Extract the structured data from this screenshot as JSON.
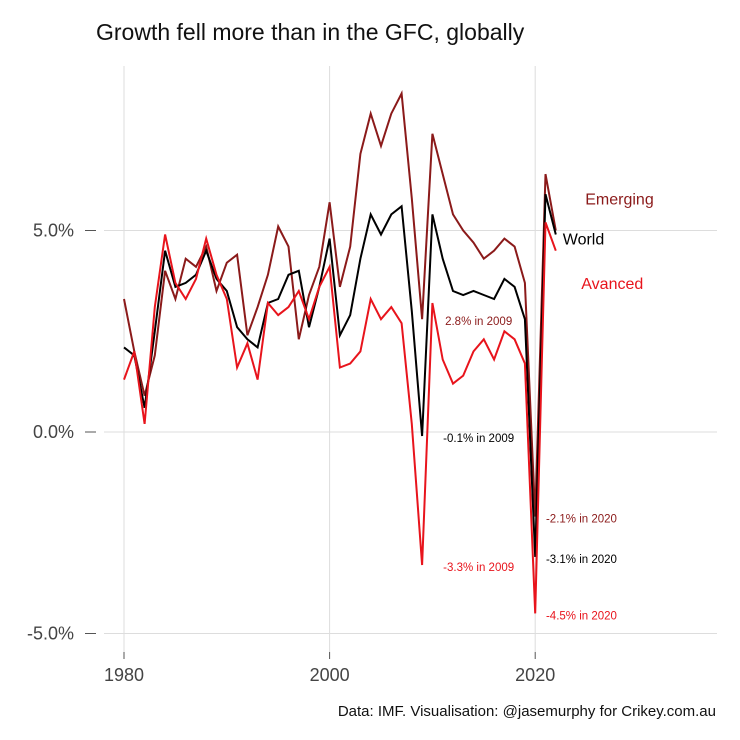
{
  "chart_data": {
    "type": "line",
    "title": "Growth fell more than in the GFC, globally",
    "caption": "Data: IMF. Visualisation: @jasemurphy for Crikey.com.au",
    "xlabel": "",
    "ylabel": "",
    "xlim": [
      1977,
      2036
    ],
    "ylim": [
      -5.5,
      9.1
    ],
    "x_ticks": [
      1980,
      2000,
      2020
    ],
    "x_tick_labels": [
      "1980",
      "2000",
      "2020"
    ],
    "y_ticks": [
      -5,
      0,
      5
    ],
    "y_tick_labels": [
      "-5.0%",
      "0.0%",
      "5.0%"
    ],
    "grid": true,
    "legend": "direct-labels-right",
    "x": [
      1980,
      1981,
      1982,
      1983,
      1984,
      1985,
      1986,
      1987,
      1988,
      1989,
      1990,
      1991,
      1992,
      1993,
      1994,
      1995,
      1996,
      1997,
      1998,
      1999,
      2000,
      2001,
      2002,
      2003,
      2004,
      2005,
      2006,
      2007,
      2008,
      2009,
      2010,
      2011,
      2012,
      2013,
      2014,
      2015,
      2016,
      2017,
      2018,
      2019,
      2020,
      2021,
      2022
    ],
    "series": [
      {
        "name": "Emerging",
        "color": "#8b1a1a",
        "values": [
          3.3,
          2.0,
          0.9,
          1.9,
          4.0,
          3.3,
          4.3,
          4.1,
          4.6,
          3.5,
          4.2,
          4.4,
          2.4,
          3.1,
          3.9,
          5.1,
          4.6,
          2.3,
          3.4,
          4.1,
          5.7,
          3.6,
          4.6,
          6.9,
          7.9,
          7.1,
          7.9,
          8.4,
          5.8,
          2.8,
          7.4,
          6.4,
          5.4,
          5.0,
          4.7,
          4.3,
          4.5,
          4.8,
          4.6,
          3.7,
          -2.1,
          6.4,
          5.0
        ]
      },
      {
        "name": "World",
        "color": "#000000",
        "values": [
          2.1,
          1.9,
          0.6,
          2.5,
          4.5,
          3.6,
          3.7,
          3.9,
          4.5,
          3.8,
          3.5,
          2.6,
          2.3,
          2.1,
          3.2,
          3.3,
          3.9,
          4.0,
          2.6,
          3.6,
          4.8,
          2.4,
          2.9,
          4.3,
          5.4,
          4.9,
          5.4,
          5.6,
          3.0,
          -0.1,
          5.4,
          4.3,
          3.5,
          3.4,
          3.5,
          3.4,
          3.3,
          3.8,
          3.6,
          2.8,
          -3.1,
          5.9,
          4.9
        ]
      },
      {
        "name": "Avanced",
        "color": "#e8141c",
        "values": [
          1.3,
          2.0,
          0.2,
          3.1,
          4.9,
          3.7,
          3.3,
          3.8,
          4.8,
          3.9,
          3.3,
          1.6,
          2.2,
          1.3,
          3.2,
          2.9,
          3.1,
          3.5,
          2.8,
          3.6,
          4.1,
          1.6,
          1.7,
          2.0,
          3.3,
          2.8,
          3.1,
          2.7,
          0.2,
          -3.3,
          3.2,
          1.8,
          1.2,
          1.4,
          2.0,
          2.3,
          1.8,
          2.5,
          2.3,
          1.7,
          -4.5,
          5.2,
          4.5
        ]
      }
    ],
    "series_labels": [
      {
        "text": "Emerging",
        "color": "#8b1a1a",
        "x": 2028.2,
        "y": 5.8
      },
      {
        "text": "World",
        "color": "#000000",
        "x": 2024.7,
        "y": 4.8
      },
      {
        "text": "Avanced",
        "color": "#e8141c",
        "x": 2027.5,
        "y": 3.7
      }
    ],
    "annotations": [
      {
        "text": "2.8% in 2009",
        "color": "#8b1a1a",
        "x": 2014.5,
        "y": 2.75
      },
      {
        "text": "-0.1% in 2009",
        "color": "#000000",
        "x": 2014.5,
        "y": -0.15
      },
      {
        "text": "-3.3% in 2009",
        "color": "#e8141c",
        "x": 2014.5,
        "y": -3.35
      },
      {
        "text": "-2.1% in 2020",
        "color": "#8b1a1a",
        "x": 2024.5,
        "y": -2.15
      },
      {
        "text": "-3.1% in 2020",
        "color": "#000000",
        "x": 2024.5,
        "y": -3.15
      },
      {
        "text": "-4.5% in 2020",
        "color": "#e8141c",
        "x": 2024.5,
        "y": -4.55
      }
    ]
  }
}
